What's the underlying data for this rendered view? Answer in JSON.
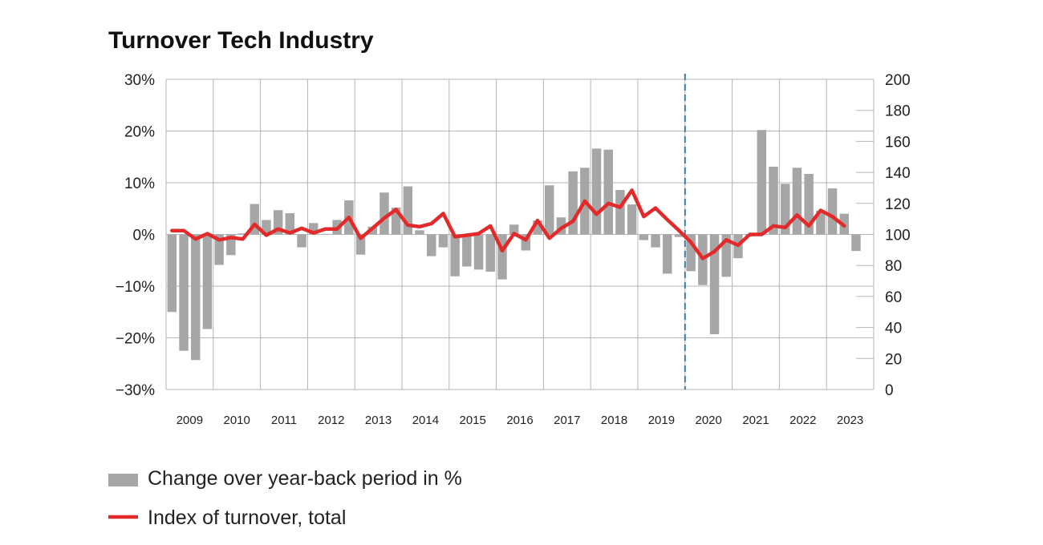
{
  "chart_data": {
    "type": "bar",
    "title": "Turnover Tech Industry",
    "colors": {
      "bars": "#a6a6a6",
      "line": "#e32a2a",
      "grid": "#b5b5b5",
      "marker": "#3a7ca5"
    },
    "y_left": {
      "min": -30,
      "max": 30,
      "ticks": [
        30,
        20,
        10,
        0,
        -10,
        -20,
        -30
      ],
      "tick_labels": [
        "30%",
        "20%",
        "10%",
        "0%",
        "−10%",
        "−20%",
        "−30%"
      ]
    },
    "y_right": {
      "min": 0,
      "max": 200,
      "ticks": [
        200,
        180,
        160,
        140,
        120,
        100,
        80,
        60,
        40,
        20,
        0
      ],
      "tick_labels": [
        "200",
        "180",
        "160",
        "140",
        "120",
        "100",
        "80",
        "60",
        "40",
        "20",
        "0"
      ]
    },
    "x_labels": [
      "2009",
      "2010",
      "2011",
      "2012",
      "2013",
      "2014",
      "2015",
      "2016",
      "2017",
      "2018",
      "2019",
      "2020",
      "2021",
      "2022",
      "2023"
    ],
    "quarters_start": "2009-Q1",
    "marker_quarter_index": 44,
    "series": [
      {
        "name": "Change over year-back period in %",
        "type": "bar",
        "axis": "left",
        "values": [
          -15.0,
          -22.5,
          -24.3,
          -18.3,
          -5.9,
          -4.0,
          0.2,
          5.9,
          2.8,
          4.7,
          4.1,
          -2.5,
          2.2,
          0.1,
          2.8,
          6.6,
          -3.9,
          1.5,
          8.1,
          5.2,
          9.3,
          0.8,
          -4.2,
          -2.5,
          -8.1,
          -6.2,
          -6.8,
          -7.2,
          -8.7,
          1.9,
          -3.1,
          2.7,
          9.5,
          3.3,
          12.2,
          12.9,
          16.6,
          16.4,
          8.6,
          5.8,
          -1.1,
          -2.5,
          -7.6,
          -0.5,
          -7.1,
          -9.8,
          -19.3,
          -8.2,
          -4.6,
          -0.4,
          20.2,
          13.1,
          9.8,
          12.9,
          11.7,
          4.6,
          8.9,
          4.0,
          -3.2
        ]
      },
      {
        "name": "Index of turnover, total",
        "type": "line",
        "axis": "right",
        "values": [
          102.5,
          102.5,
          97,
          100.5,
          96.5,
          98,
          97,
          106.5,
          99.5,
          103.5,
          101,
          104,
          101,
          103.5,
          103.5,
          111,
          97.5,
          104,
          110.5,
          116,
          106,
          105,
          107,
          113.5,
          98.5,
          99.5,
          100.5,
          105.5,
          89.5,
          100.5,
          96.5,
          109,
          97.5,
          104,
          108.5,
          121.5,
          113,
          120,
          117.5,
          128.5,
          111.5,
          117,
          109.5,
          102.5,
          95,
          84.5,
          89,
          96.5,
          93,
          100,
          100,
          105.5,
          104.5,
          112.5,
          105.5,
          115.5,
          111.5,
          105.5
        ]
      }
    ],
    "legend": [
      {
        "kind": "bar",
        "label": "Change over year-back period in %"
      },
      {
        "kind": "line",
        "label": "Index of turnover, total"
      }
    ],
    "legend_position": "bottom-left",
    "grid": true
  }
}
